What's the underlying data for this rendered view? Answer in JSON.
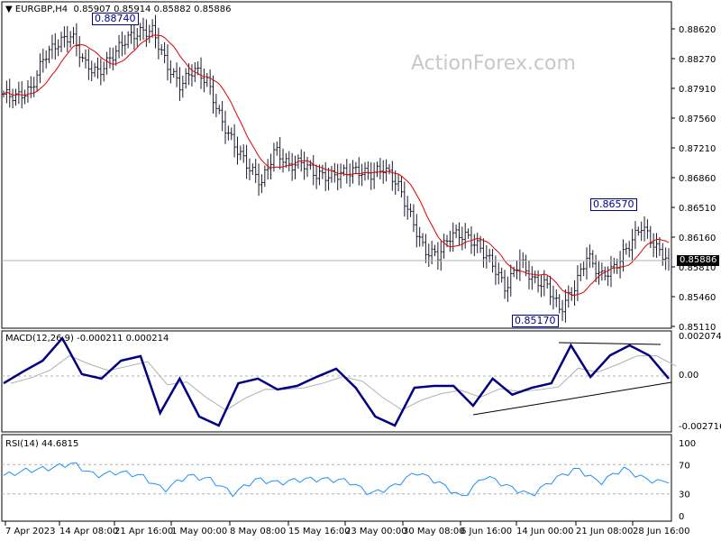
{
  "header": {
    "symbol": "EURGBP,H4",
    "ohlc": "0.85907 0.85914 0.85882 0.85886"
  },
  "watermark": "ActionForex.com",
  "annotations": {
    "high1": "0.88740",
    "high2": "0.86570",
    "low1": "0.85170"
  },
  "current_price": "0.85886",
  "macd_label": "MACD(12,26,9) -0.000211 0.000214",
  "rsi_label": "RSI(14) 44.6815",
  "colors": {
    "bars": "#1a1a2e",
    "ma": "#e00000",
    "macd": "#000080",
    "signal": "#b0b0b0",
    "rsi": "#1e90ff",
    "labels": "#00008b"
  },
  "chart_data": [
    {
      "type": "bar",
      "subtype": "ohlc",
      "title": "EURGBP,H4",
      "ylim": [
        0.8511,
        0.8862
      ],
      "yticks": [
        "0.88620",
        "0.88270",
        "0.87910",
        "0.87560",
        "0.87210",
        "0.86860",
        "0.86510",
        "0.86160",
        "0.85810",
        "0.85460",
        "0.85110"
      ],
      "xticks": [
        "7 Apr 2023",
        "14 Apr 08:00",
        "21 Apr 16:00",
        "1 May 00:00",
        "8 May 08:00",
        "15 May 16:00",
        "23 May 00:00",
        "30 May 08:00",
        "6 Jun 16:00",
        "14 Jun 00:00",
        "21 Jun 08:00",
        "28 Jun 16:00"
      ],
      "close": [
        0.8785,
        0.8782,
        0.879,
        0.883,
        0.8845,
        0.8855,
        0.882,
        0.881,
        0.883,
        0.885,
        0.8858,
        0.886,
        0.882,
        0.8795,
        0.8815,
        0.88,
        0.8755,
        0.8725,
        0.87,
        0.868,
        0.872,
        0.87,
        0.8705,
        0.869,
        0.8688,
        0.8692,
        0.8695,
        0.869,
        0.8698,
        0.868,
        0.864,
        0.86,
        0.8595,
        0.862,
        0.8618,
        0.8605,
        0.8585,
        0.8555,
        0.859,
        0.8565,
        0.856,
        0.853,
        0.8555,
        0.8595,
        0.857,
        0.858,
        0.8605,
        0.863,
        0.8605,
        0.85886
      ],
      "moving_average": "red"
    },
    {
      "type": "line",
      "title": "MACD(12,26,9)",
      "ylim": [
        -0.002716,
        0.002074
      ],
      "yticks": [
        "0.002074",
        "0.00",
        "-0.002716"
      ],
      "macd": [
        -0.00039,
        0.00024,
        0.00082,
        0.00202,
        0.0001,
        -0.00014,
        0.00082,
        0.00106,
        -0.00198,
        -0.00014,
        -0.00217,
        -0.00265,
        -0.00039,
        -0.00014,
        -0.00072,
        -0.00053,
        -5e-05,
        0.00039,
        -0.00063,
        -0.00217,
        -0.00265,
        -0.00063,
        -0.00053,
        -0.00053,
        -0.00159,
        -0.00014,
        -0.001,
        -0.00063,
        -0.00039,
        0.00164,
        -5e-05,
        0.0011,
        0.00164,
        0.0011,
        -0.00014
      ],
      "values_shown": [
        "-0.000211",
        "0.000214"
      ]
    },
    {
      "type": "line",
      "title": "RSI(14)",
      "ylim": [
        0,
        100
      ],
      "yticks": [
        "100",
        "70",
        "30",
        "0"
      ],
      "rsi": [
        55,
        62,
        65,
        72,
        55,
        60,
        55,
        35,
        55,
        50,
        30,
        50,
        45,
        50,
        50,
        48,
        30,
        40,
        60,
        45,
        25,
        55,
        40,
        28,
        50,
        65,
        45,
        65,
        50,
        44.68
      ]
    }
  ]
}
